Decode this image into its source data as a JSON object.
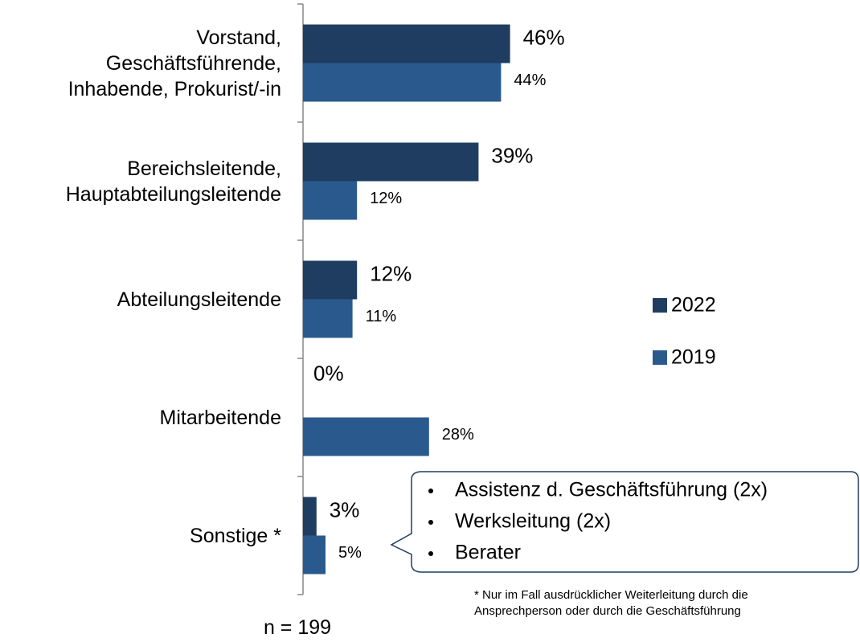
{
  "chart_data": {
    "type": "bar",
    "orientation": "horizontal",
    "categories": [
      "Vorstand,\nGeschäftsführende,\nInhabende, Prokurist/-in",
      "Bereichsleitende,\nHauptabteilungsleitende",
      "Abteilungsleitende",
      "Mitarbeitende",
      "Sonstige *"
    ],
    "series": [
      {
        "name": "2022",
        "color": "#1f3d61",
        "values": [
          46,
          39,
          12,
          0,
          3
        ],
        "value_labels": [
          "46%",
          "39%",
          "12%",
          "0%",
          "3%"
        ]
      },
      {
        "name": "2019",
        "color": "#2a5a8d",
        "values": [
          44,
          12,
          11,
          28,
          5
        ],
        "value_labels": [
          "44%",
          "12%",
          "11%",
          "28%",
          "5%"
        ]
      }
    ],
    "xlim": [
      0,
      100
    ],
    "callout": [
      "Assistenz d. Geschäftsführung (2x)",
      "Werksleitung (2x)",
      "Berater"
    ],
    "footnote": "* Nur im Fall ausdrücklicher Weiterleitung durch die\nAnsprechperson oder durch die Geschäftsführung",
    "sample": "n = 199"
  }
}
